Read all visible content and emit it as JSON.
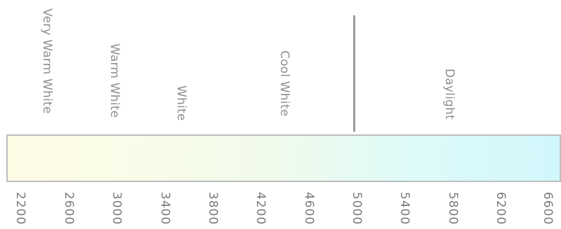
{
  "scale": {
    "min": 2200,
    "max": 6600,
    "ticks": [
      "2200",
      "2600",
      "3000",
      "3400",
      "3800",
      "4200",
      "4600",
      "5000",
      "5400",
      "5800",
      "6200",
      "6600"
    ],
    "gradient_colors": {
      "warm": "#fffce6",
      "mid": "#f2fbea",
      "cool": "#ddfaf9",
      "cold": "#d2f7fb"
    }
  },
  "bands": [
    {
      "label": "Very Warm White"
    },
    {
      "label": "Warm White"
    },
    {
      "label": "White"
    },
    {
      "label": "Cool White"
    },
    {
      "label": "Daylight"
    }
  ],
  "colors": {
    "band_text": "#8f8f8f",
    "tick_text": "#7a7a7a",
    "divider": "#9a9a9a",
    "bar_border": "#bdbdbd"
  }
}
